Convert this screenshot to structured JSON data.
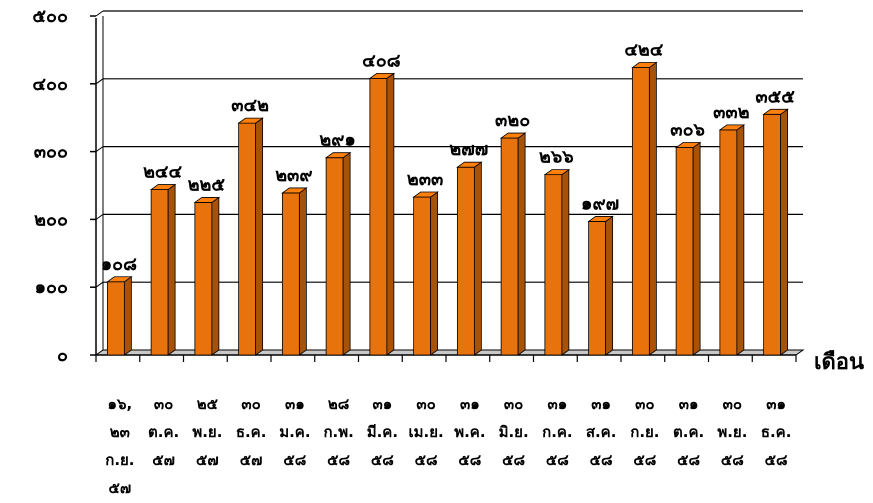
{
  "chart_data": {
    "type": "bar",
    "style": "3d-column",
    "bar_color": "#e8720c",
    "categories": [
      [
        "๑๖,",
        "๒๓",
        "ก.ย.",
        "๕๗"
      ],
      [
        "๓๐",
        "ต.ค.",
        "๕๗"
      ],
      [
        "๒๕",
        "พ.ย.",
        "๕๗"
      ],
      [
        "๓๐",
        "ธ.ค.",
        "๕๗"
      ],
      [
        "๓๑",
        "ม.ค.",
        "๕๘"
      ],
      [
        "๒๘",
        "ก.พ.",
        "๕๘"
      ],
      [
        "๓๑",
        "มี.ค.",
        "๕๘"
      ],
      [
        "๓๐",
        "เม.ย.",
        "๕๘"
      ],
      [
        "๓๑",
        "พ.ค.",
        "๕๘"
      ],
      [
        "๓๐",
        "มิ.ย.",
        "๕๘"
      ],
      [
        "๓๑",
        "ก.ค.",
        "๕๘"
      ],
      [
        "๓๑",
        "ส.ค.",
        "๕๘"
      ],
      [
        "๓๐",
        "ก.ย.",
        "๕๘"
      ],
      [
        "๓๑",
        "ต.ค.",
        "๕๘"
      ],
      [
        "๓๐",
        "พ.ย.",
        "๕๘"
      ],
      [
        "๓๑",
        "ธ.ค.",
        "๕๘"
      ]
    ],
    "values": [
      108,
      244,
      225,
      342,
      239,
      291,
      408,
      233,
      277,
      320,
      266,
      197,
      424,
      306,
      332,
      355
    ],
    "data_labels": [
      "๑๐๘",
      "๒๔๔",
      "๒๒๕",
      "๓๔๒",
      "๒๓๙",
      "๒๙๑",
      "๔๐๘",
      "๒๓๓",
      "๒๗๗",
      "๓๒๐",
      "๒๖๖",
      "๑๙๗",
      "๔๒๔",
      "๓๐๖",
      "๓๓๒",
      "๓๕๕"
    ],
    "yticks": [
      0,
      100,
      200,
      300,
      400,
      500
    ],
    "ytick_labels": [
      "๐",
      "๑๐๐",
      "๒๐๐",
      "๓๐๐",
      "๔๐๐",
      "๕๐๐"
    ],
    "ylim": [
      0,
      500
    ],
    "xlabel": "เดือน",
    "ylabel": "",
    "title": "",
    "grid": true,
    "legend": "none"
  }
}
